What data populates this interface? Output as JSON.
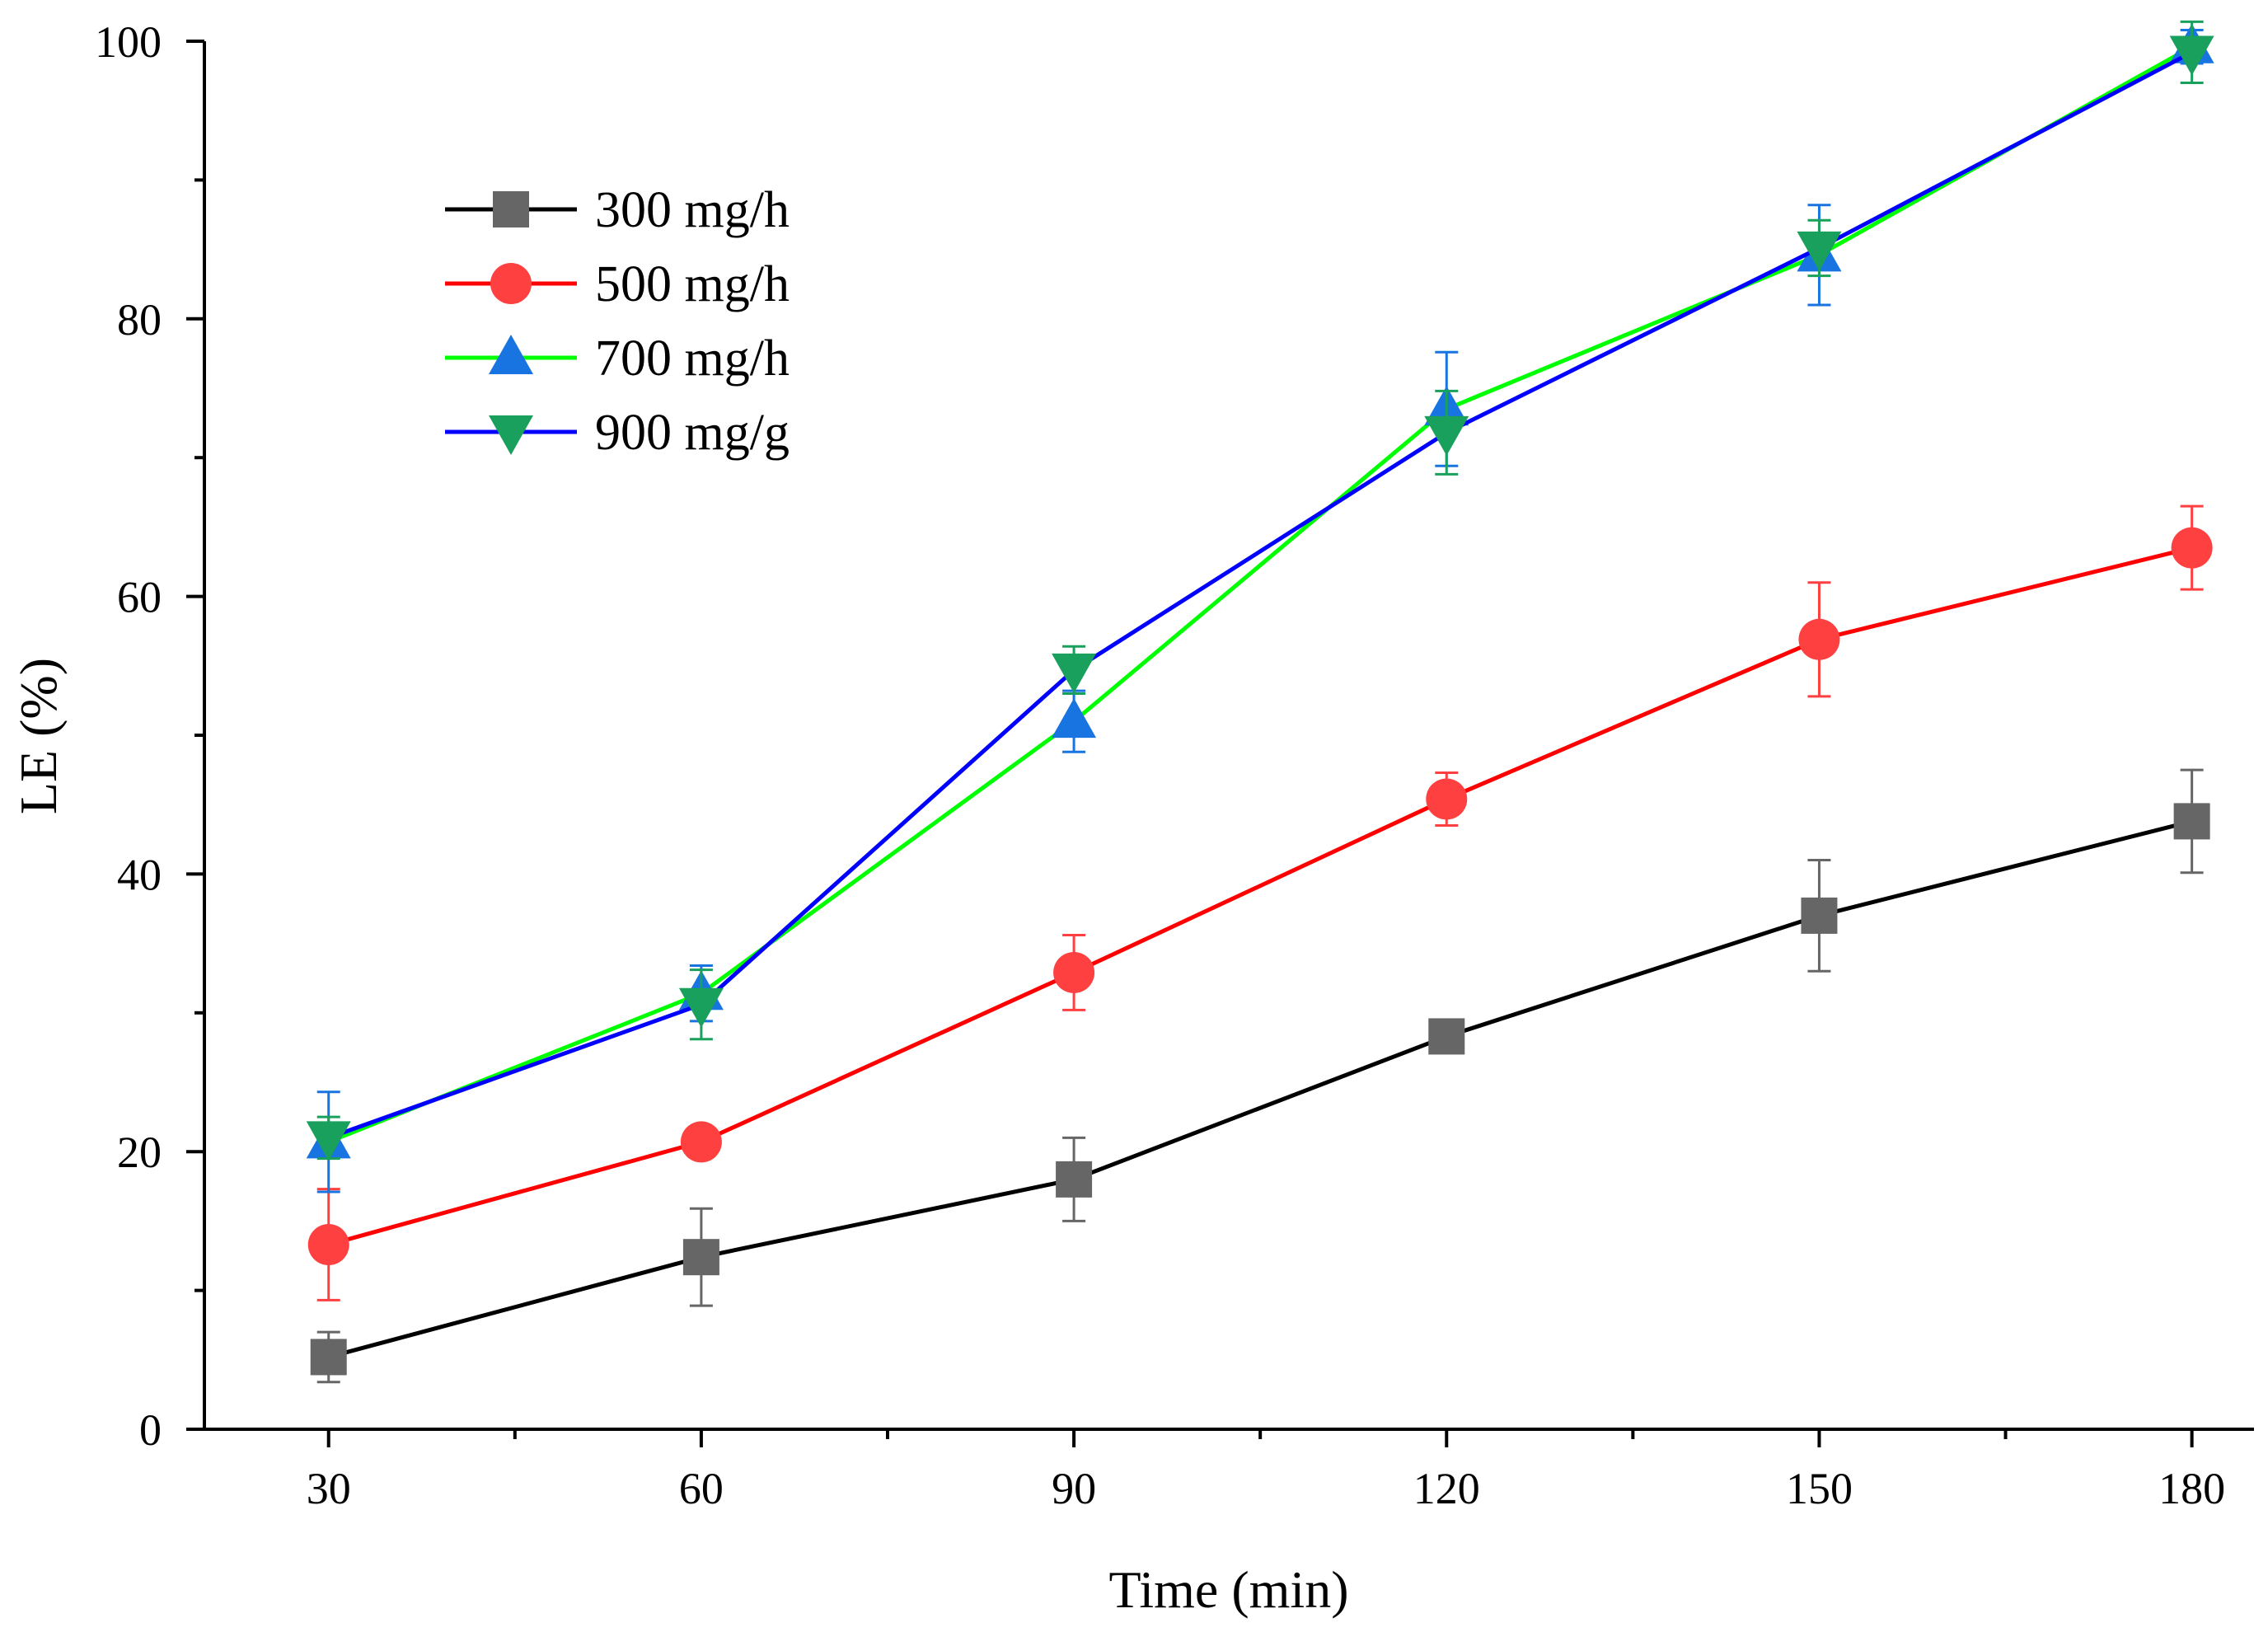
{
  "chart_data": {
    "type": "line",
    "title": "",
    "xlabel": "Time (min)",
    "ylabel": "LE (%)",
    "x": [
      30,
      60,
      90,
      120,
      150,
      180
    ],
    "xlim": [
      20,
      185
    ],
    "ylim": [
      0,
      100
    ],
    "xticks": [
      30,
      60,
      90,
      120,
      150,
      180
    ],
    "xticks_minor": [
      45,
      75,
      105,
      135,
      165
    ],
    "yticks": [
      0,
      20,
      40,
      60,
      80,
      100
    ],
    "yticks_minor": [
      10,
      30,
      50,
      70,
      90
    ],
    "xtick_labels": [
      "30",
      "60",
      "90",
      "120",
      "150",
      "180"
    ],
    "ytick_labels": [
      "0",
      "20",
      "40",
      "60",
      "80",
      "100"
    ],
    "legend_position": "top-left",
    "series": [
      {
        "name": "300 mg/h",
        "marker": "square",
        "line_color": "#000000",
        "marker_color": "#666666",
        "values": [
          5.2,
          12.4,
          18.0,
          28.3,
          37.0,
          43.8
        ],
        "errors": [
          1.8,
          3.5,
          3.0,
          0.5,
          4.0,
          3.7
        ]
      },
      {
        "name": "500 mg/h",
        "marker": "circle",
        "line_color": "#ff0000",
        "marker_color": "#ff4040",
        "values": [
          13.3,
          20.7,
          32.9,
          45.4,
          56.9,
          63.5
        ],
        "errors": [
          4.0,
          0.5,
          2.7,
          1.9,
          4.1,
          3.0
        ]
      },
      {
        "name": "700 mg/h",
        "marker": "triangle-up",
        "line_color": "#00ff00",
        "marker_color": "#1874e0",
        "values": [
          20.7,
          31.4,
          51.0,
          73.5,
          84.6,
          99.6
        ],
        "errors": [
          3.6,
          2.0,
          2.2,
          4.1,
          3.6,
          1.2
        ]
      },
      {
        "name": "900 mg/g",
        "marker": "triangle-down",
        "line_color": "#0000ff",
        "marker_color": "#19a05c",
        "values": [
          21.0,
          30.6,
          54.7,
          71.8,
          85.1,
          99.2
        ],
        "errors": [
          1.5,
          2.5,
          1.7,
          3.0,
          2.0,
          2.2
        ]
      }
    ]
  }
}
